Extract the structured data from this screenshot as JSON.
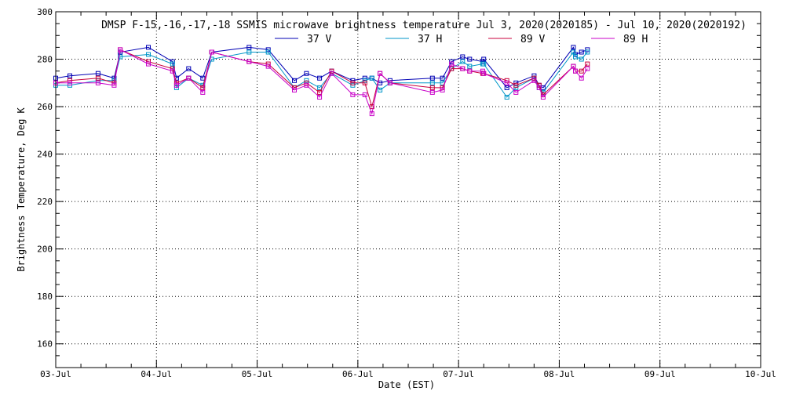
{
  "chart_data": {
    "type": "line",
    "title": "DMSP F-15,-16,-17,-18 SSMIS microwave brightness temperature Jul  3, 2020(2020185) - Jul 10, 2020(2020192)",
    "xlabel": "Date (EST)",
    "ylabel": "Brightness Temperature, Deg K",
    "ylim": [
      150,
      300
    ],
    "xlim": [
      "03-Jul",
      "10-Jul"
    ],
    "x_ticks": [
      "03-Jul",
      "04-Jul",
      "05-Jul",
      "06-Jul",
      "07-Jul",
      "08-Jul",
      "09-Jul",
      "10-Jul"
    ],
    "y_ticks": [
      160,
      180,
      200,
      220,
      240,
      260,
      280,
      300
    ],
    "grid": true,
    "legend_position": "top-center",
    "x_unit_note": "x values are fractional days after 03-Jul 00:00 EST",
    "series": [
      {
        "name": "37 V",
        "color": "#0000b4",
        "x": [
          0.0,
          0.14,
          0.42,
          0.58,
          0.64,
          0.92,
          1.16,
          1.2,
          1.32,
          1.46,
          1.55,
          1.92,
          2.11,
          2.37,
          2.49,
          2.62,
          2.74,
          2.95,
          3.07,
          3.14,
          3.22,
          3.32,
          3.74,
          3.84,
          3.93,
          4.04,
          4.11,
          4.24,
          4.25,
          4.48,
          4.57,
          4.75,
          4.8,
          4.84,
          5.14,
          5.16,
          5.22,
          5.28
        ],
        "y": [
          272,
          273,
          274,
          272,
          283,
          285,
          279,
          272,
          276,
          272,
          283,
          285,
          284,
          271,
          274,
          272,
          275,
          271,
          272,
          272,
          270,
          271,
          272,
          272,
          279,
          281,
          280,
          279,
          280,
          268,
          270,
          273,
          269,
          268,
          285,
          282,
          283,
          284
        ]
      },
      {
        "name": "37 H",
        "color": "#0096c8",
        "x": [
          0.0,
          0.14,
          0.42,
          0.58,
          0.64,
          0.92,
          1.16,
          1.2,
          1.32,
          1.46,
          1.55,
          1.92,
          2.11,
          2.37,
          2.49,
          2.62,
          2.74,
          2.95,
          3.07,
          3.14,
          3.22,
          3.32,
          3.74,
          3.84,
          3.93,
          4.04,
          4.11,
          4.24,
          4.25,
          4.48,
          4.57,
          4.75,
          4.8,
          4.84,
          5.14,
          5.16,
          5.22,
          5.28
        ],
        "y": [
          269,
          269,
          271,
          271,
          281,
          282,
          278,
          268,
          272,
          269,
          280,
          283,
          283,
          268,
          271,
          268,
          274,
          269,
          271,
          272,
          267,
          270,
          270,
          270,
          276,
          279,
          277,
          278,
          278,
          264,
          268,
          272,
          268,
          266,
          283,
          281,
          280,
          283
        ]
      },
      {
        "name": "89 V",
        "color": "#c8003c",
        "x": [
          0.0,
          0.14,
          0.42,
          0.58,
          0.64,
          0.92,
          1.16,
          1.2,
          1.32,
          1.46,
          1.55,
          1.92,
          2.11,
          2.37,
          2.49,
          2.62,
          2.74,
          2.95,
          3.07,
          3.14,
          3.22,
          3.32,
          3.74,
          3.84,
          3.93,
          4.04,
          4.11,
          4.24,
          4.25,
          4.48,
          4.57,
          4.75,
          4.8,
          4.84,
          5.14,
          5.16,
          5.22,
          5.28
        ],
        "y": [
          270,
          271,
          272,
          270,
          284,
          279,
          276,
          270,
          272,
          268,
          283,
          279,
          278,
          268,
          270,
          266,
          275,
          270,
          270,
          260,
          274,
          270,
          268,
          268,
          276,
          276,
          275,
          274,
          274,
          271,
          269,
          272,
          269,
          265,
          277,
          275,
          275,
          278
        ]
      },
      {
        "name": "89 H",
        "color": "#c800c8",
        "x": [
          0.0,
          0.14,
          0.42,
          0.58,
          0.64,
          0.92,
          1.16,
          1.2,
          1.32,
          1.46,
          1.55,
          1.92,
          2.11,
          2.37,
          2.49,
          2.62,
          2.74,
          2.95,
          3.07,
          3.14,
          3.22,
          3.32,
          3.74,
          3.84,
          3.93,
          4.04,
          4.11,
          4.24,
          4.25,
          4.48,
          4.57,
          4.75,
          4.8,
          4.84,
          5.14,
          5.16,
          5.22,
          5.28
        ],
        "y": [
          270,
          270,
          270,
          269,
          284,
          278,
          275,
          269,
          272,
          266,
          283,
          279,
          277,
          267,
          269,
          264,
          274,
          265,
          265,
          257,
          274,
          270,
          266,
          267,
          278,
          276,
          275,
          275,
          274,
          270,
          266,
          271,
          268,
          264,
          277,
          275,
          272,
          276
        ]
      }
    ]
  }
}
